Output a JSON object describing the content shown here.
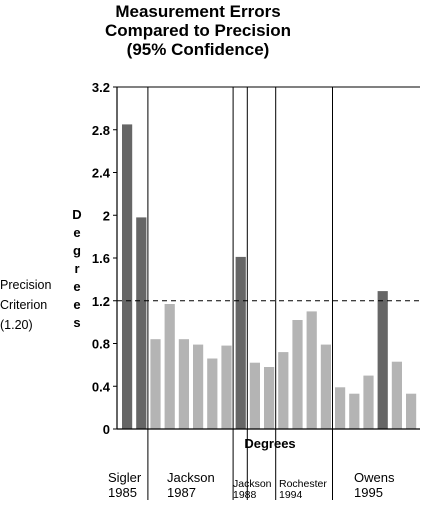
{
  "chart_data": {
    "type": "bar",
    "title": [
      "Measurement Errors",
      "Compared to Precision",
      "(95% Confidence)"
    ],
    "ylabel": "Degrees",
    "xlabel": "Degrees",
    "ylim": [
      0,
      3.2
    ],
    "yticks": [
      0,
      0.4,
      0.8,
      1.2,
      1.6,
      2,
      2.4,
      2.8,
      3.2
    ],
    "ytick_labels": [
      "0",
      "0.4",
      "0.8",
      "1.2",
      "1.6",
      "2",
      "2.4",
      "2.8",
      "3.2"
    ],
    "grid": false,
    "reference_line": {
      "value": 1.2,
      "style": "dashed",
      "label": [
        "Precision",
        "Criterion",
        "(1.20)"
      ]
    },
    "colors": {
      "highlight": "#666666",
      "normal": "#b4b4b4",
      "axis": "#000000"
    },
    "groups": [
      {
        "label": [
          "Sigler",
          "1985"
        ],
        "small_label": false,
        "bars": [
          {
            "value": 2.85,
            "highlight": true
          },
          {
            "value": 1.98,
            "highlight": true
          }
        ]
      },
      {
        "label": [
          "Jackson",
          "1987"
        ],
        "small_label": false,
        "bars": [
          {
            "value": 0.84,
            "highlight": false
          },
          {
            "value": 1.17,
            "highlight": false
          },
          {
            "value": 0.84,
            "highlight": false
          },
          {
            "value": 0.79,
            "highlight": false
          },
          {
            "value": 0.66,
            "highlight": false
          },
          {
            "value": 0.78,
            "highlight": false
          }
        ]
      },
      {
        "label": [
          "Jackson",
          "1988"
        ],
        "small_label": true,
        "bars": [
          {
            "value": 1.61,
            "highlight": true
          }
        ]
      },
      {
        "label": [
          "",
          ""
        ],
        "small_label": true,
        "bars": [
          {
            "value": 0.62,
            "highlight": false
          },
          {
            "value": 0.58,
            "highlight": false
          }
        ]
      },
      {
        "label": [
          "Rochester",
          "1994"
        ],
        "small_label": true,
        "bars": [
          {
            "value": 0.72,
            "highlight": false
          },
          {
            "value": 1.02,
            "highlight": false
          },
          {
            "value": 1.1,
            "highlight": false
          },
          {
            "value": 0.79,
            "highlight": false
          }
        ]
      },
      {
        "label": [
          "Owens",
          "1995"
        ],
        "small_label": false,
        "bars": [
          {
            "value": 0.39,
            "highlight": false
          },
          {
            "value": 0.33,
            "highlight": false
          },
          {
            "value": 0.5,
            "highlight": false
          },
          {
            "value": 1.29,
            "highlight": true
          },
          {
            "value": 0.63,
            "highlight": false
          },
          {
            "value": 0.33,
            "highlight": false
          }
        ]
      }
    ]
  }
}
